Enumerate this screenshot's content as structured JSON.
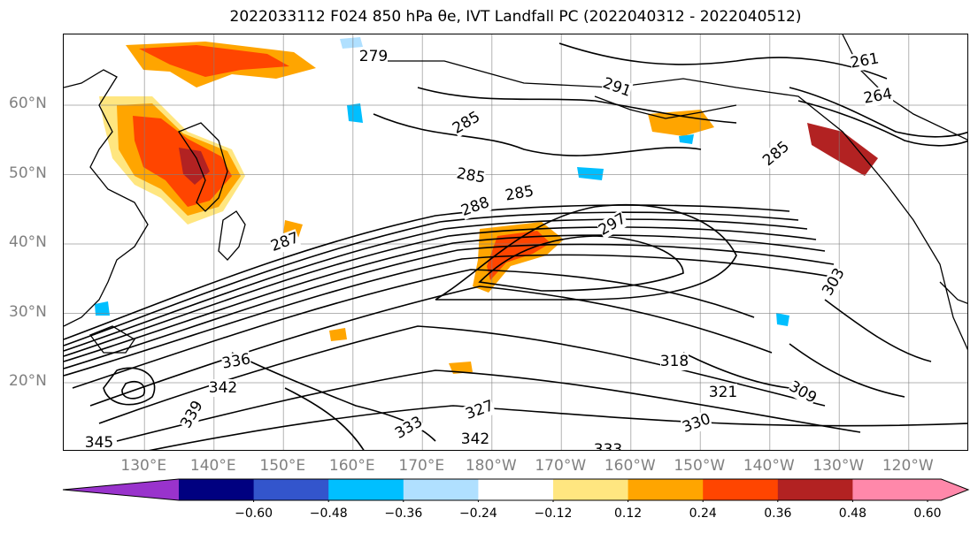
{
  "title": "2022033112 F024 850 hPa θe, IVT Landfall PC (2022040312 - 2022040512)",
  "map": {
    "lat_labels": [
      "60°N",
      "50°N",
      "40°N",
      "30°N",
      "20°N"
    ],
    "lon_labels": [
      "130°E",
      "140°E",
      "150°E",
      "160°E",
      "170°E",
      "180°W",
      "170°W",
      "160°W",
      "150°W",
      "140°W",
      "130°W",
      "120°W"
    ],
    "contour_labels": [
      "279",
      "291",
      "261",
      "264",
      "285",
      "285",
      "285",
      "288",
      "297",
      "285",
      "287",
      "303",
      "309",
      "318",
      "321",
      "330",
      "333",
      "327",
      "342",
      "345",
      "339",
      "342",
      "336",
      "333"
    ],
    "colors": {
      "coast": "#000000",
      "grid": "#808080",
      "contour": "#000000"
    }
  },
  "colorbar": {
    "colors": [
      "#9933cc",
      "#000080",
      "#3355cc",
      "#00bfff",
      "#b0e0ff",
      "#ffffff",
      "#ffe680",
      "#ffa500",
      "#ff4500",
      "#b22222",
      "#ff88aa"
    ],
    "tick_labels": [
      "−0.60",
      "−0.48",
      "−0.36",
      "−0.24",
      "−0.12",
      "0.12",
      "0.24",
      "0.36",
      "0.48",
      "0.60"
    ],
    "ticks": [
      -0.6,
      -0.48,
      -0.36,
      -0.24,
      -0.12,
      0.12,
      0.24,
      0.36,
      0.48,
      0.6
    ]
  }
}
